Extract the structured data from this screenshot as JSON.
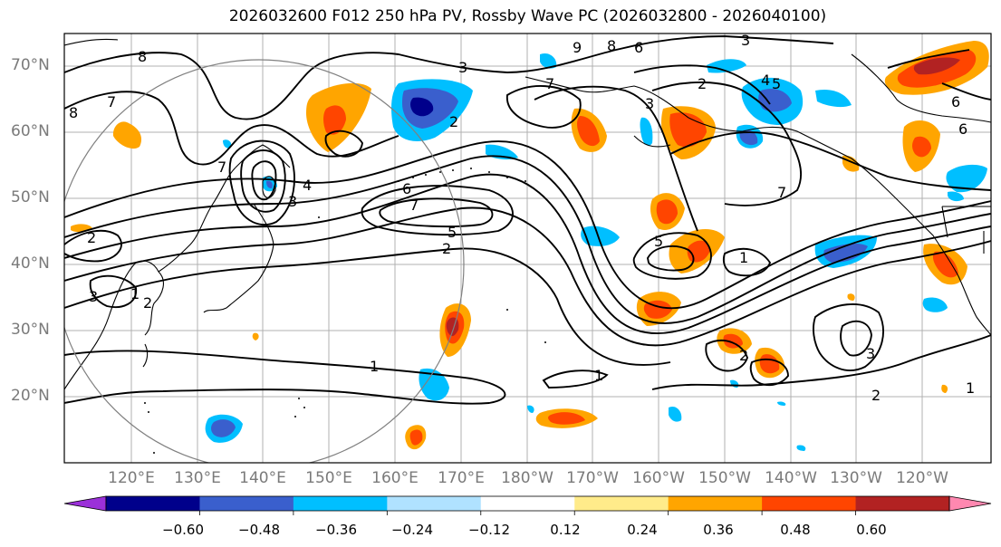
{
  "title": "2026032600 F012 250 hPa PV, Rossby Wave PC (2026032800 - 2026040100)",
  "lat_labels": [
    "70°N",
    "60°N",
    "50°N",
    "40°N",
    "30°N",
    "20°N"
  ],
  "lon_labels": [
    "120°E",
    "130°E",
    "140°E",
    "150°E",
    "160°E",
    "170°E",
    "180°W",
    "170°W",
    "160°W",
    "150°W",
    "140°W",
    "130°W",
    "120°W"
  ],
  "colorbar": {
    "ticks": [
      "−0.60",
      "−0.48",
      "−0.36",
      "−0.24",
      "−0.12",
      "0.12",
      "0.24",
      "0.36",
      "0.48",
      "0.60"
    ],
    "colors": [
      "#9b30d9",
      "#00008b",
      "#3a5fcd",
      "#00bfff",
      "#b0e2ff",
      "#ffffff",
      "#ffeb8a",
      "#ffa500",
      "#ff4500",
      "#b22222",
      "#ff88b0"
    ]
  },
  "contour_labels": [
    "8",
    "7",
    "7",
    "3",
    "2",
    "2",
    "3",
    "1",
    "2",
    "9",
    "8",
    "6",
    "3",
    "2",
    "4",
    "5",
    "6",
    "7",
    "5",
    "2",
    "1",
    "6",
    "3",
    "1",
    "5",
    "3",
    "1",
    "2",
    "1",
    "7",
    "6",
    "7",
    "8",
    "2",
    "3",
    "4"
  ]
}
